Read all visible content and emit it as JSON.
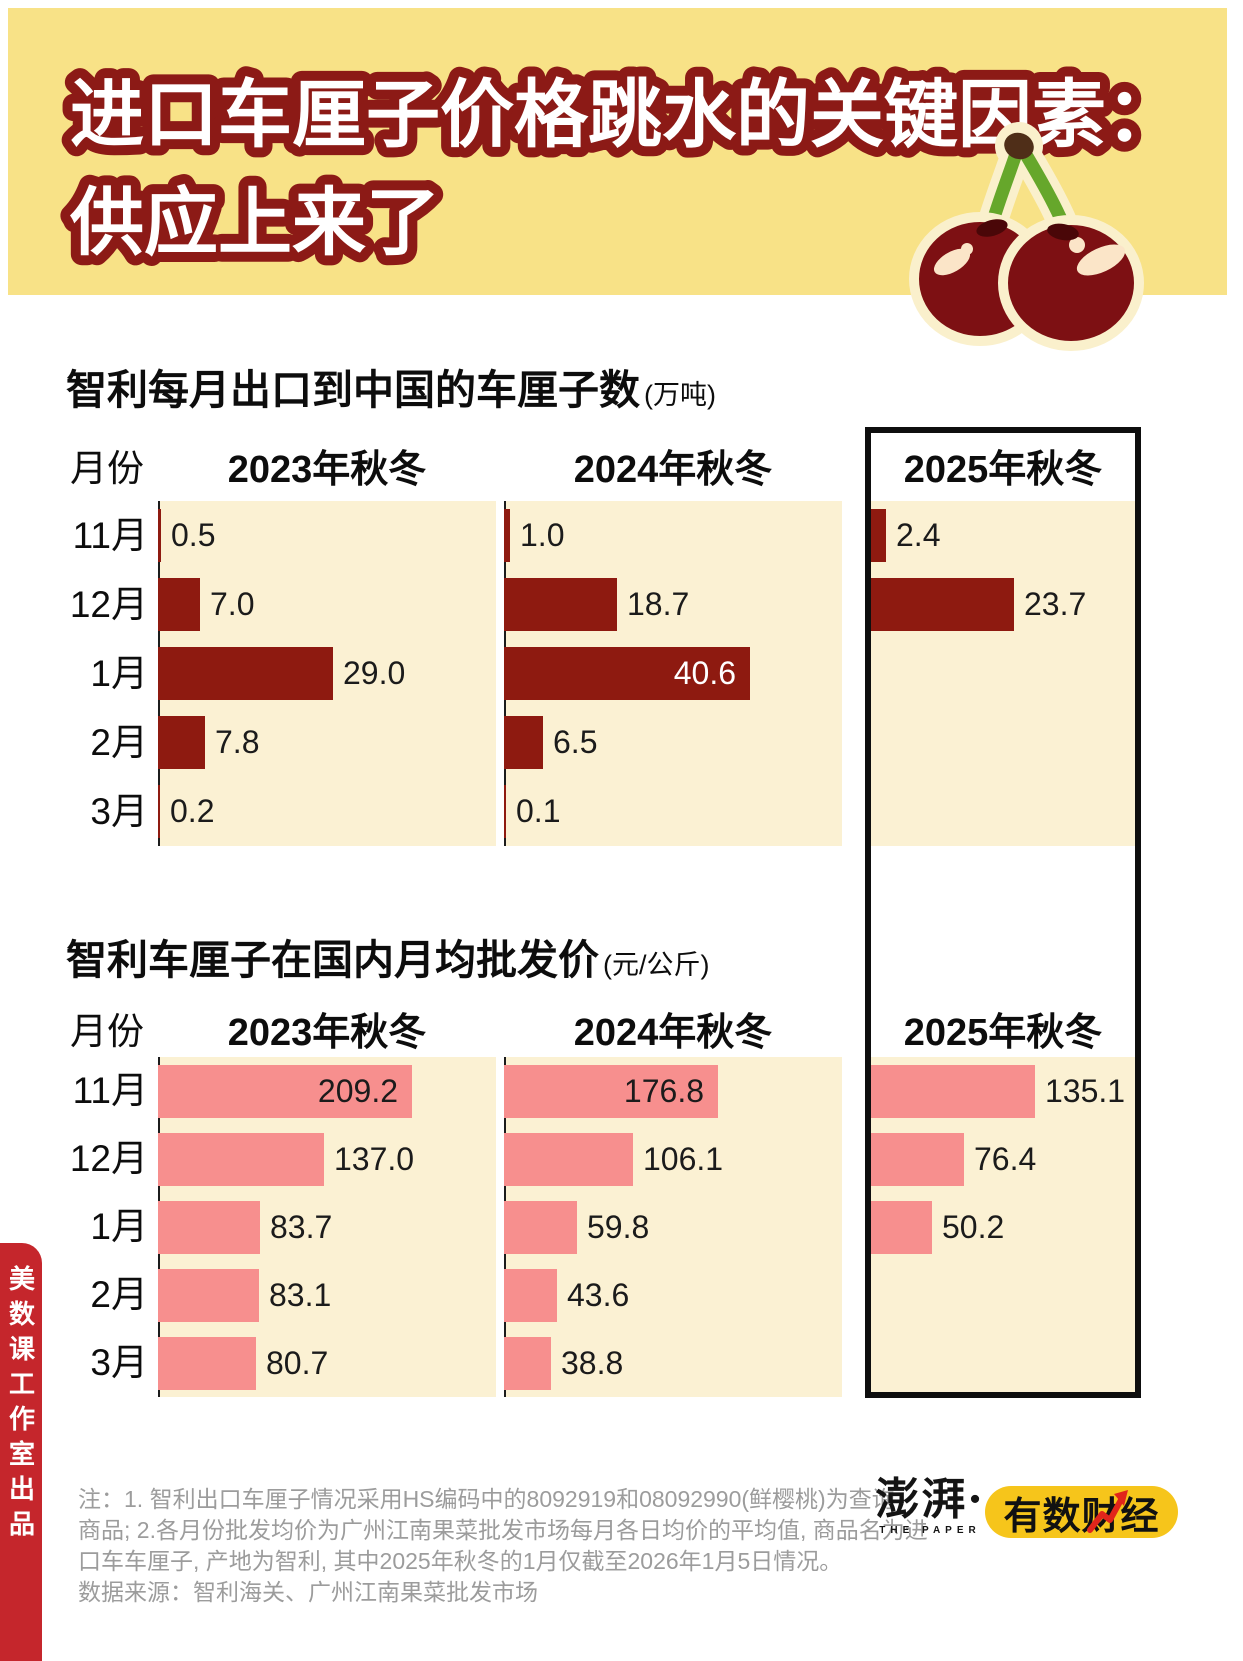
{
  "banner": {
    "title_line1": "进口车厘子价格跳水的关键因素：",
    "title_line2": "供应上来了",
    "bg_color": "#F8E287",
    "outline_color": "#8C1A16"
  },
  "chart_data": [
    {
      "type": "bar",
      "title": "智利每月出口到中国的车厘子数",
      "unit": "(万吨)",
      "row_header": "月份",
      "categories": [
        "11月",
        "12月",
        "1月",
        "2月",
        "3月"
      ],
      "columns": [
        "2023年秋冬",
        "2024年秋冬",
        "2025年秋冬"
      ],
      "highlighted_column": "2025年秋冬",
      "bar_color": "#8E1A10",
      "inside_label_color": "#ffffff",
      "series": [
        {
          "name": "2023年秋冬",
          "values": [
            0.5,
            7.0,
            29.0,
            7.8,
            0.2
          ],
          "label_inside": [
            false,
            false,
            false,
            false,
            false
          ]
        },
        {
          "name": "2024年秋冬",
          "values": [
            1.0,
            18.7,
            40.6,
            6.5,
            0.1
          ],
          "label_inside": [
            false,
            false,
            true,
            false,
            false
          ]
        },
        {
          "name": "2025年秋冬",
          "values": [
            2.4,
            23.7,
            null,
            null,
            null
          ],
          "label_inside": [
            false,
            false,
            false,
            false,
            false
          ]
        }
      ]
    },
    {
      "type": "bar",
      "title": "智利车厘子在国内月均批发价",
      "unit": "(元/公斤)",
      "row_header": "月份",
      "categories": [
        "11月",
        "12月",
        "1月",
        "2月",
        "3月"
      ],
      "columns": [
        "2023年秋冬",
        "2024年秋冬",
        "2025年秋冬"
      ],
      "highlighted_column": "2025年秋冬",
      "bar_color": "#F78F8E",
      "inside_label_color": "#1b1b1b",
      "series": [
        {
          "name": "2023年秋冬",
          "values": [
            209.2,
            137.0,
            83.7,
            83.1,
            80.7
          ],
          "label_inside": [
            true,
            false,
            false,
            false,
            false
          ]
        },
        {
          "name": "2024年秋冬",
          "values": [
            176.8,
            106.1,
            59.8,
            43.6,
            38.8
          ],
          "label_inside": [
            true,
            false,
            false,
            false,
            false
          ]
        },
        {
          "name": "2025年秋冬",
          "values": [
            135.1,
            76.4,
            50.2,
            null,
            null
          ],
          "label_inside": [
            false,
            false,
            false,
            false,
            false
          ]
        }
      ]
    }
  ],
  "notes": {
    "lines": [
      "注：1. 智利出口车厘子情况采用HS编码中的8092919和08092990(鲜樱桃)为查询",
      "商品; 2.各月份批发均价为广州江南果菜批发市场每月各日均价的平均值, 商品名为进",
      "口车车厘子, 产地为智利, 其中2025年秋冬的1月仅截至2026年1月5日情况。"
    ],
    "source": "数据来源：智利海关、广州江南果菜批发市场"
  },
  "ribbon": {
    "text": "美数课工作室出品",
    "bg_color": "#C5262C"
  },
  "footer": {
    "brand": "澎湃·",
    "brand_sub": "THE PAPER",
    "badge": "有数财经",
    "badge_color": "#F6C51B"
  }
}
